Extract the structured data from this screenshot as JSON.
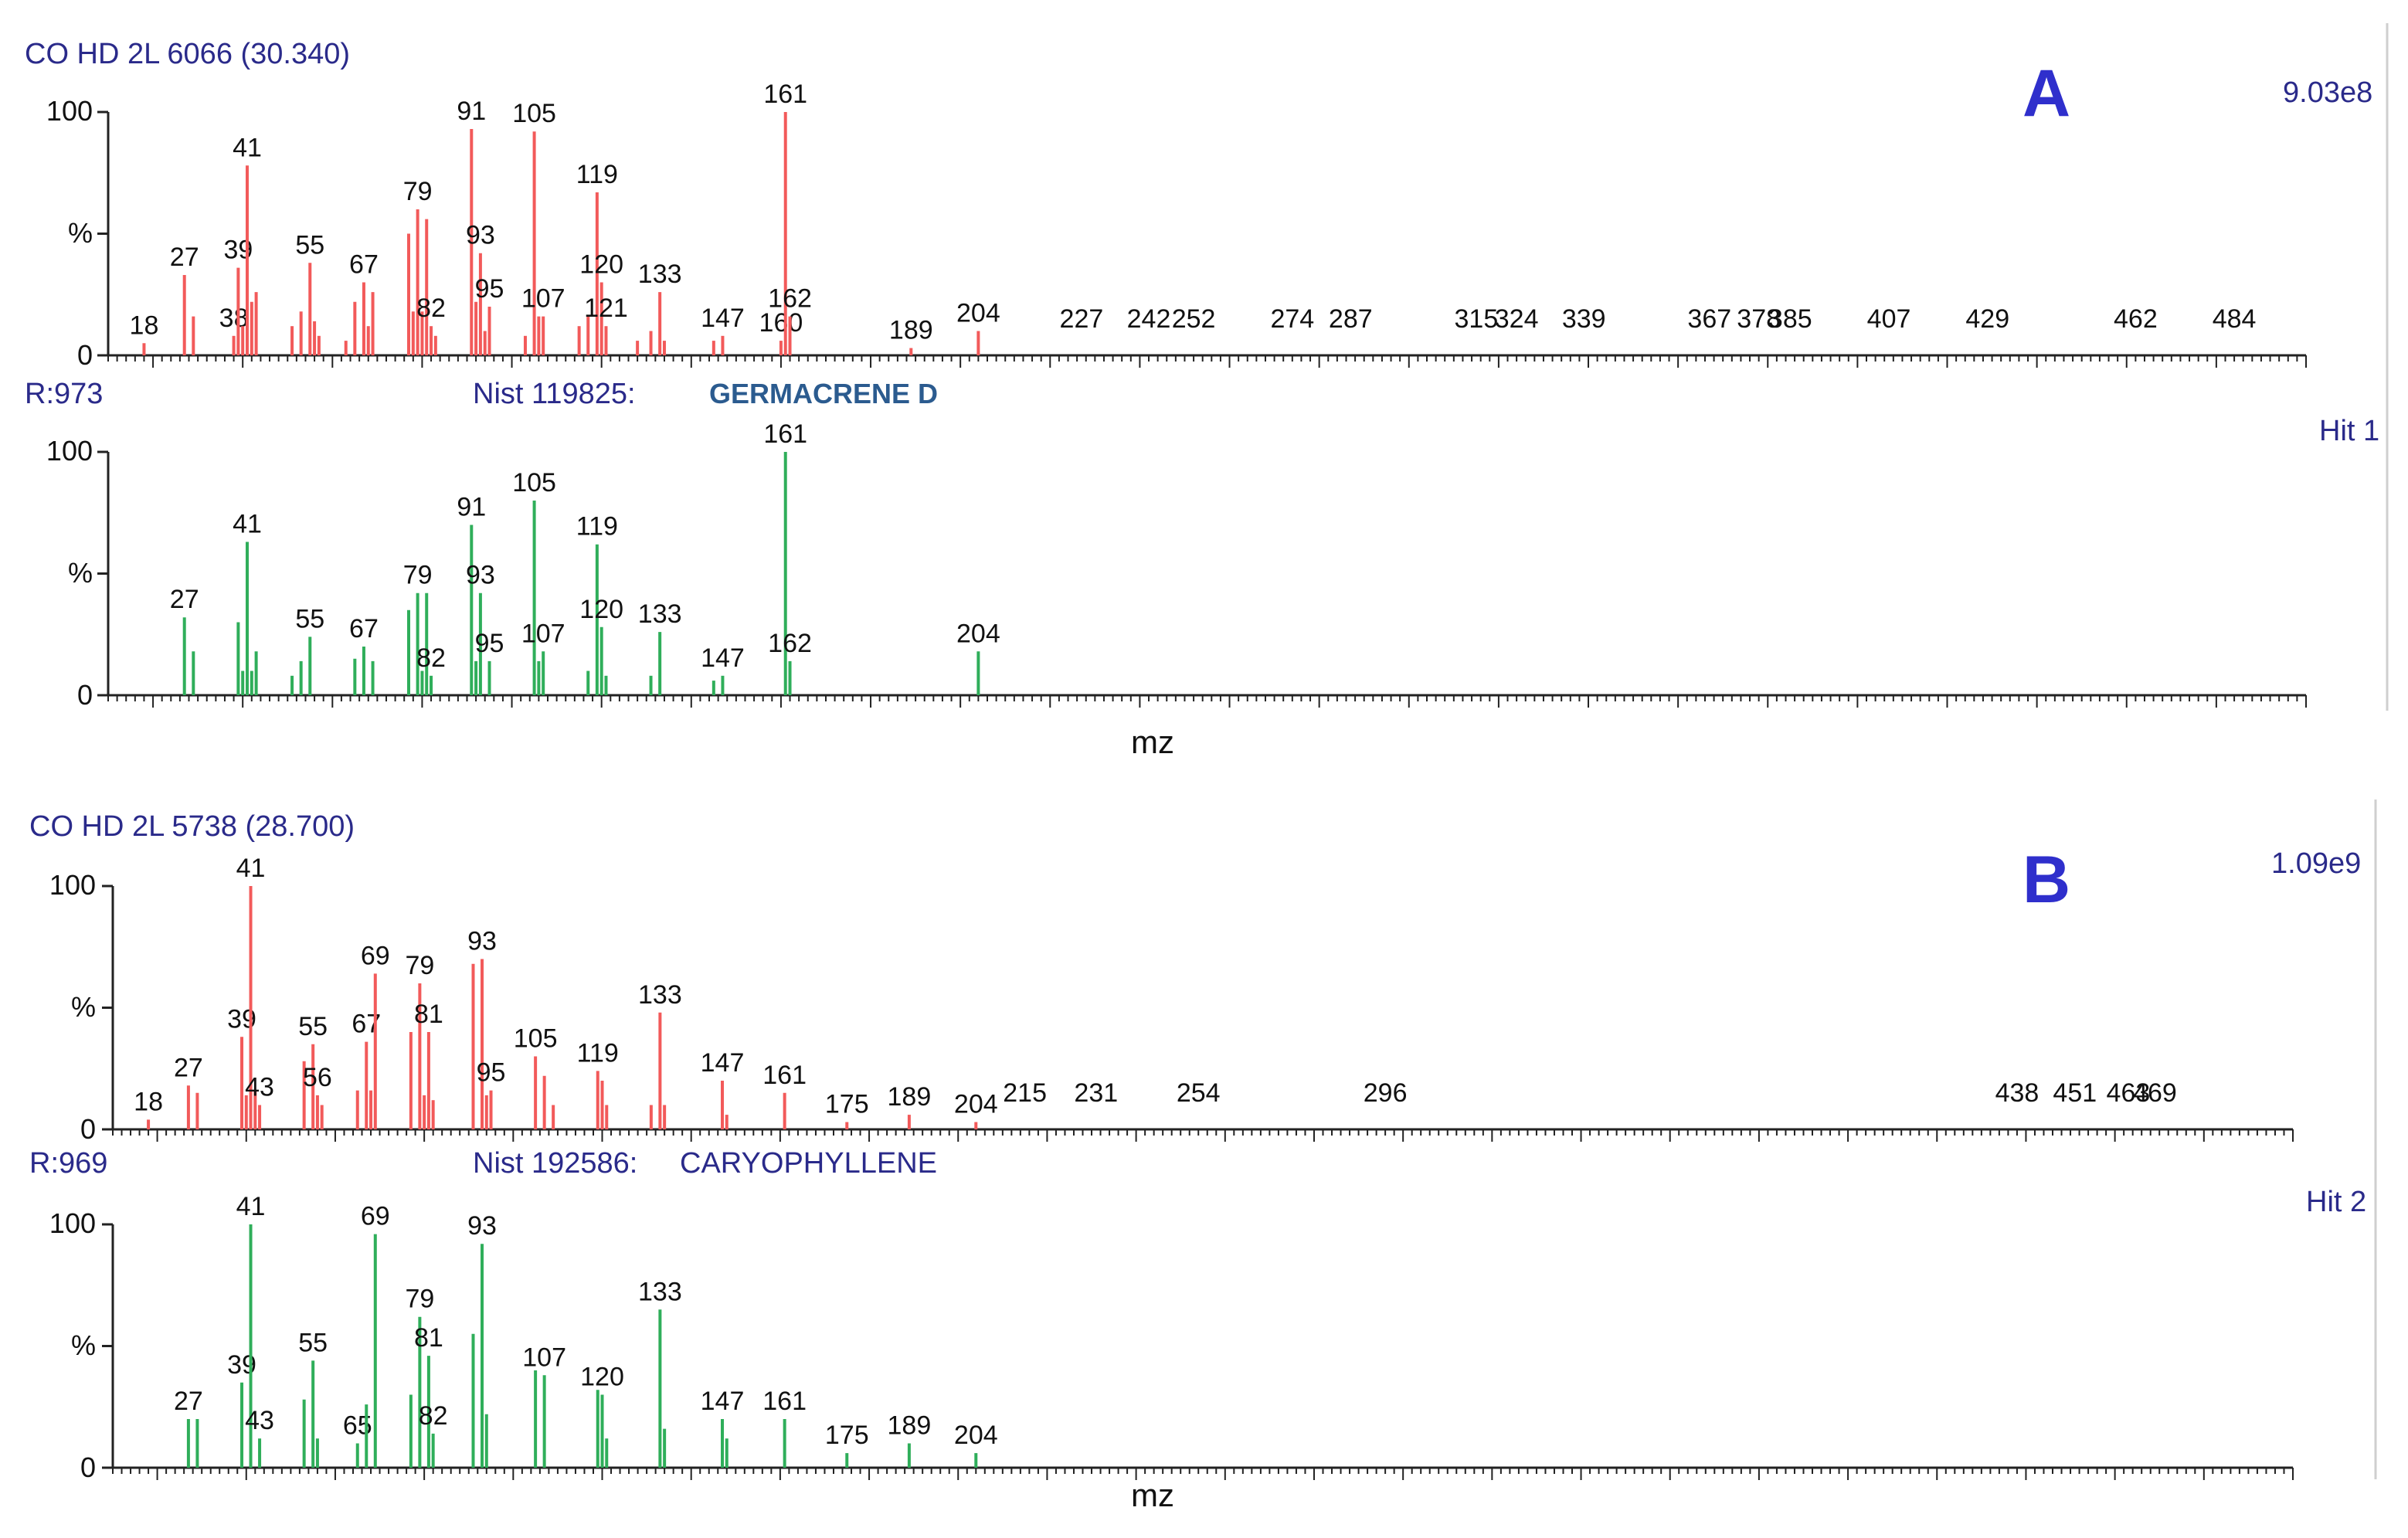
{
  "colors": {
    "sample": "#f25a5a",
    "library": "#2fae5a",
    "header": "#2a2a8a",
    "compound_a": "#2b5b8f",
    "letter": "#2f2fcc"
  },
  "panels": [
    {
      "letter": "A",
      "sample_header": "CO HD 2L 6066 (30.340)",
      "intensity": "9.03e8",
      "match_r": "R:973",
      "nist_id": "Nist  119825:",
      "compound": "GERMACRENE D",
      "hit": "Hit 1",
      "xlabel": "mz"
    },
    {
      "letter": "B",
      "sample_header": "CO HD 2L 5738 (28.700)",
      "intensity": "1.09e9",
      "match_r": "R:969",
      "nist_id": "Nist  192586:",
      "compound": "CARYOPHYLLENE",
      "hit": "Hit 2",
      "xlabel": "mz"
    }
  ],
  "yticks": [
    "0",
    "%",
    "100"
  ],
  "chart_data": [
    {
      "type": "bar",
      "title": "CO HD 2L 6066 (30.340) sample spectrum",
      "xlabel": "mz",
      "ylabel": "%",
      "xlim": [
        10,
        500
      ],
      "ylim": [
        0,
        100
      ],
      "peaks": [
        {
          "mz": 18,
          "i": 5,
          "l": "18"
        },
        {
          "mz": 27,
          "i": 33,
          "l": "27"
        },
        {
          "mz": 29,
          "i": 16
        },
        {
          "mz": 38,
          "i": 8,
          "l": "38"
        },
        {
          "mz": 39,
          "i": 36,
          "l": "39"
        },
        {
          "mz": 40,
          "i": 12
        },
        {
          "mz": 41,
          "i": 78,
          "l": "41"
        },
        {
          "mz": 42,
          "i": 22
        },
        {
          "mz": 43,
          "i": 26
        },
        {
          "mz": 51,
          "i": 12
        },
        {
          "mz": 53,
          "i": 18
        },
        {
          "mz": 55,
          "i": 38,
          "l": "55"
        },
        {
          "mz": 56,
          "i": 14
        },
        {
          "mz": 57,
          "i": 8
        },
        {
          "mz": 63,
          "i": 6
        },
        {
          "mz": 65,
          "i": 22
        },
        {
          "mz": 67,
          "i": 30,
          "l": "67"
        },
        {
          "mz": 68,
          "i": 12
        },
        {
          "mz": 69,
          "i": 26
        },
        {
          "mz": 77,
          "i": 50
        },
        {
          "mz": 78,
          "i": 18
        },
        {
          "mz": 79,
          "i": 60,
          "l": "79"
        },
        {
          "mz": 80,
          "i": 18
        },
        {
          "mz": 81,
          "i": 56
        },
        {
          "mz": 82,
          "i": 12,
          "l": "82"
        },
        {
          "mz": 83,
          "i": 8
        },
        {
          "mz": 91,
          "i": 93,
          "l": "91"
        },
        {
          "mz": 92,
          "i": 22
        },
        {
          "mz": 93,
          "i": 42,
          "l": "93"
        },
        {
          "mz": 94,
          "i": 10
        },
        {
          "mz": 95,
          "i": 20,
          "l": "95"
        },
        {
          "mz": 103,
          "i": 8
        },
        {
          "mz": 105,
          "i": 92,
          "l": "105"
        },
        {
          "mz": 106,
          "i": 16
        },
        {
          "mz": 107,
          "i": 16,
          "l": "107"
        },
        {
          "mz": 115,
          "i": 12
        },
        {
          "mz": 117,
          "i": 16
        },
        {
          "mz": 119,
          "i": 67,
          "l": "119"
        },
        {
          "mz": 120,
          "i": 30,
          "l": "120"
        },
        {
          "mz": 121,
          "i": 12,
          "l": "121"
        },
        {
          "mz": 128,
          "i": 6
        },
        {
          "mz": 131,
          "i": 10
        },
        {
          "mz": 133,
          "i": 26,
          "l": "133"
        },
        {
          "mz": 134,
          "i": 6
        },
        {
          "mz": 145,
          "i": 6
        },
        {
          "mz": 147,
          "i": 8,
          "l": "147"
        },
        {
          "mz": 160,
          "i": 6,
          "l": "160"
        },
        {
          "mz": 161,
          "i": 100,
          "l": "161"
        },
        {
          "mz": 162,
          "i": 16,
          "l": "162"
        },
        {
          "mz": 189,
          "i": 3,
          "l": "189"
        },
        {
          "mz": 204,
          "i": 10,
          "l": "204"
        },
        {
          "mz": 227,
          "l": "227",
          "i": 0
        },
        {
          "mz": 242,
          "l": "242",
          "i": 0
        },
        {
          "mz": 252,
          "l": "252",
          "i": 0
        },
        {
          "mz": 274,
          "l": "274",
          "i": 0
        },
        {
          "mz": 287,
          "l": "287",
          "i": 0
        },
        {
          "mz": 315,
          "l": "315",
          "i": 0
        },
        {
          "mz": 324,
          "l": "324",
          "i": 0
        },
        {
          "mz": 339,
          "l": "339",
          "i": 0
        },
        {
          "mz": 367,
          "l": "367",
          "i": 0
        },
        {
          "mz": 378,
          "l": "378",
          "i": 0
        },
        {
          "mz": 385,
          "l": "385",
          "i": 0
        },
        {
          "mz": 407,
          "l": "407",
          "i": 0
        },
        {
          "mz": 429,
          "l": "429",
          "i": 0
        },
        {
          "mz": 462,
          "l": "462",
          "i": 0
        },
        {
          "mz": 484,
          "l": "484",
          "i": 0
        }
      ]
    },
    {
      "type": "bar",
      "title": "NIST 119825 GERMACRENE D library spectrum",
      "xlabel": "mz",
      "ylabel": "%",
      "xlim": [
        10,
        500
      ],
      "ylim": [
        0,
        100
      ],
      "peaks": [
        {
          "mz": 27,
          "i": 32,
          "l": "27"
        },
        {
          "mz": 29,
          "i": 18
        },
        {
          "mz": 39,
          "i": 30
        },
        {
          "mz": 40,
          "i": 10
        },
        {
          "mz": 41,
          "i": 63,
          "l": "41"
        },
        {
          "mz": 42,
          "i": 10
        },
        {
          "mz": 43,
          "i": 18
        },
        {
          "mz": 51,
          "i": 8
        },
        {
          "mz": 53,
          "i": 14
        },
        {
          "mz": 55,
          "i": 24,
          "l": "55"
        },
        {
          "mz": 65,
          "i": 15
        },
        {
          "mz": 67,
          "i": 20,
          "l": "67"
        },
        {
          "mz": 69,
          "i": 14
        },
        {
          "mz": 77,
          "i": 35
        },
        {
          "mz": 79,
          "i": 42,
          "l": "79"
        },
        {
          "mz": 80,
          "i": 10
        },
        {
          "mz": 81,
          "i": 42
        },
        {
          "mz": 82,
          "i": 8,
          "l": "82"
        },
        {
          "mz": 91,
          "i": 70,
          "l": "91"
        },
        {
          "mz": 92,
          "i": 14
        },
        {
          "mz": 93,
          "i": 42,
          "l": "93"
        },
        {
          "mz": 95,
          "i": 14,
          "l": "95"
        },
        {
          "mz": 105,
          "i": 80,
          "l": "105"
        },
        {
          "mz": 106,
          "i": 14
        },
        {
          "mz": 107,
          "i": 18,
          "l": "107"
        },
        {
          "mz": 117,
          "i": 10
        },
        {
          "mz": 119,
          "i": 62,
          "l": "119"
        },
        {
          "mz": 120,
          "i": 28,
          "l": "120"
        },
        {
          "mz": 121,
          "i": 8
        },
        {
          "mz": 131,
          "i": 8
        },
        {
          "mz": 133,
          "i": 26,
          "l": "133"
        },
        {
          "mz": 145,
          "i": 6
        },
        {
          "mz": 147,
          "i": 8,
          "l": "147"
        },
        {
          "mz": 161,
          "i": 100,
          "l": "161"
        },
        {
          "mz": 162,
          "i": 14,
          "l": "162"
        },
        {
          "mz": 204,
          "i": 18,
          "l": "204"
        }
      ]
    },
    {
      "type": "bar",
      "title": "CO HD 2L 5738 (28.700) sample spectrum",
      "xlabel": "mz",
      "ylabel": "%",
      "xlim": [
        10,
        500
      ],
      "ylim": [
        0,
        100
      ],
      "peaks": [
        {
          "mz": 18,
          "i": 4,
          "l": "18"
        },
        {
          "mz": 27,
          "i": 18,
          "l": "27"
        },
        {
          "mz": 29,
          "i": 15
        },
        {
          "mz": 39,
          "i": 38,
          "l": "39"
        },
        {
          "mz": 40,
          "i": 14
        },
        {
          "mz": 41,
          "i": 100,
          "l": "41"
        },
        {
          "mz": 42,
          "i": 16
        },
        {
          "mz": 43,
          "i": 10,
          "l": "43"
        },
        {
          "mz": 53,
          "i": 28
        },
        {
          "mz": 55,
          "i": 35,
          "l": "55"
        },
        {
          "mz": 56,
          "i": 14,
          "l": "56"
        },
        {
          "mz": 57,
          "i": 10
        },
        {
          "mz": 65,
          "i": 16
        },
        {
          "mz": 67,
          "i": 36,
          "l": "67"
        },
        {
          "mz": 68,
          "i": 16
        },
        {
          "mz": 69,
          "i": 64,
          "l": "69"
        },
        {
          "mz": 77,
          "i": 40
        },
        {
          "mz": 79,
          "i": 60,
          "l": "79"
        },
        {
          "mz": 80,
          "i": 14
        },
        {
          "mz": 81,
          "i": 40,
          "l": "81"
        },
        {
          "mz": 82,
          "i": 12
        },
        {
          "mz": 91,
          "i": 68
        },
        {
          "mz": 93,
          "i": 70,
          "l": "93"
        },
        {
          "mz": 94,
          "i": 14
        },
        {
          "mz": 95,
          "i": 16,
          "l": "95"
        },
        {
          "mz": 105,
          "i": 30,
          "l": "105"
        },
        {
          "mz": 107,
          "i": 22
        },
        {
          "mz": 109,
          "i": 10
        },
        {
          "mz": 119,
          "i": 24,
          "l": "119"
        },
        {
          "mz": 120,
          "i": 20
        },
        {
          "mz": 121,
          "i": 10
        },
        {
          "mz": 131,
          "i": 10
        },
        {
          "mz": 133,
          "i": 48,
          "l": "133"
        },
        {
          "mz": 134,
          "i": 10
        },
        {
          "mz": 147,
          "i": 20,
          "l": "147"
        },
        {
          "mz": 148,
          "i": 6
        },
        {
          "mz": 161,
          "i": 15,
          "l": "161"
        },
        {
          "mz": 175,
          "i": 3,
          "l": "175"
        },
        {
          "mz": 189,
          "i": 6,
          "l": "189"
        },
        {
          "mz": 204,
          "i": 3,
          "l": "204"
        },
        {
          "mz": 215,
          "l": "215",
          "i": 0
        },
        {
          "mz": 231,
          "l": "231",
          "i": 0
        },
        {
          "mz": 254,
          "l": "254",
          "i": 0
        },
        {
          "mz": 296,
          "l": "296",
          "i": 0
        },
        {
          "mz": 438,
          "l": "438",
          "i": 0
        },
        {
          "mz": 451,
          "l": "451",
          "i": 0
        },
        {
          "mz": 463,
          "l": "463",
          "i": 0
        },
        {
          "mz": 469,
          "l": "469",
          "i": 0
        }
      ]
    },
    {
      "type": "bar",
      "title": "NIST 192586 CARYOPHYLLENE library spectrum",
      "xlabel": "mz",
      "ylabel": "%",
      "xlim": [
        10,
        500
      ],
      "ylim": [
        0,
        100
      ],
      "peaks": [
        {
          "mz": 27,
          "i": 20,
          "l": "27"
        },
        {
          "mz": 29,
          "i": 20
        },
        {
          "mz": 39,
          "i": 35,
          "l": "39"
        },
        {
          "mz": 41,
          "i": 100,
          "l": "41"
        },
        {
          "mz": 43,
          "i": 12,
          "l": "43"
        },
        {
          "mz": 53,
          "i": 28
        },
        {
          "mz": 55,
          "i": 44,
          "l": "55"
        },
        {
          "mz": 56,
          "i": 12
        },
        {
          "mz": 65,
          "i": 10,
          "l": "65"
        },
        {
          "mz": 67,
          "i": 26
        },
        {
          "mz": 69,
          "i": 96,
          "l": "69"
        },
        {
          "mz": 77,
          "i": 30
        },
        {
          "mz": 79,
          "i": 62,
          "l": "79"
        },
        {
          "mz": 81,
          "i": 46,
          "l": "81"
        },
        {
          "mz": 82,
          "i": 14,
          "l": "82"
        },
        {
          "mz": 91,
          "i": 55
        },
        {
          "mz": 93,
          "i": 92,
          "l": "93"
        },
        {
          "mz": 94,
          "i": 22
        },
        {
          "mz": 105,
          "i": 40
        },
        {
          "mz": 107,
          "i": 38,
          "l": "107"
        },
        {
          "mz": 119,
          "i": 32
        },
        {
          "mz": 120,
          "i": 30,
          "l": "120"
        },
        {
          "mz": 121,
          "i": 12
        },
        {
          "mz": 133,
          "i": 65,
          "l": "133"
        },
        {
          "mz": 134,
          "i": 16
        },
        {
          "mz": 147,
          "i": 20,
          "l": "147"
        },
        {
          "mz": 148,
          "i": 12
        },
        {
          "mz": 161,
          "i": 20,
          "l": "161"
        },
        {
          "mz": 175,
          "i": 6,
          "l": "175"
        },
        {
          "mz": 189,
          "i": 10,
          "l": "189"
        },
        {
          "mz": 204,
          "i": 6,
          "l": "204"
        }
      ]
    }
  ]
}
